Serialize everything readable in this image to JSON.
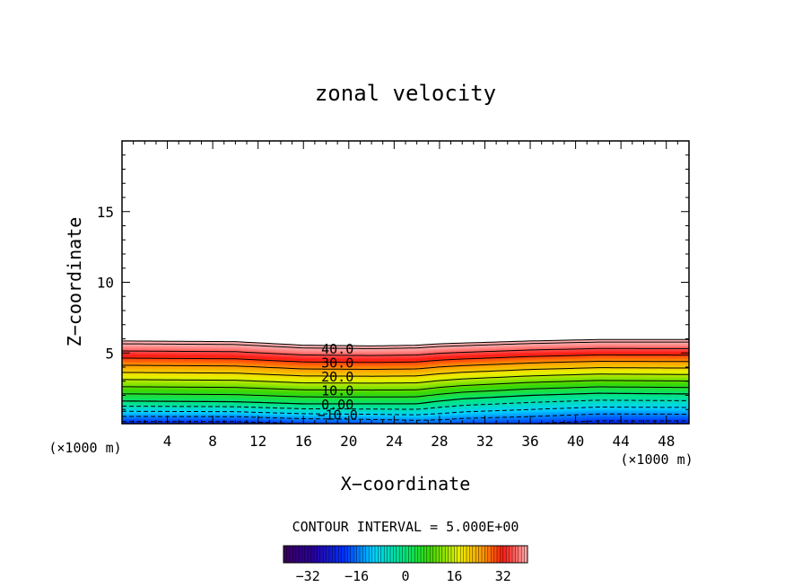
{
  "chart_data": {
    "type": "contour",
    "title": "zonal velocity",
    "xlabel": "X−coordinate",
    "ylabel": "Z−coordinate",
    "x_unit_left": "(×1000 m)",
    "x_unit_right": "(×1000 m)",
    "xlim": [
      0,
      50
    ],
    "ylim": [
      0,
      20
    ],
    "x_ticks": [
      4,
      8,
      12,
      16,
      20,
      24,
      28,
      32,
      36,
      40,
      44,
      48
    ],
    "y_ticks": [
      5,
      10,
      15
    ],
    "contour_labels": [
      {
        "value": 40,
        "text": "40.0"
      },
      {
        "value": 30,
        "text": "30.0"
      },
      {
        "value": 20,
        "text": "20.0"
      },
      {
        "value": 10,
        "text": "10.0"
      },
      {
        "value": 0,
        "text": "0.00"
      },
      {
        "value": -10,
        "text": "−10.0"
      }
    ],
    "field": {
      "x": [
        0,
        10,
        16,
        22,
        26,
        28,
        30,
        36,
        42,
        50
      ],
      "top_height": [
        5.85,
        5.8,
        5.55,
        5.5,
        5.55,
        5.65,
        5.7,
        5.85,
        5.95,
        5.95
      ],
      "zero_height": [
        1.6,
        1.55,
        1.4,
        1.4,
        1.4,
        1.6,
        1.75,
        2.0,
        2.15,
        2.1
      ],
      "surface_value": [
        -22,
        -22,
        -20,
        -19,
        -18,
        -18,
        -19,
        -20,
        -22,
        -22
      ],
      "top_value": 42
    },
    "contour_interval_text": "CONTOUR INTERVAL =  5.000E+00",
    "colorbar": {
      "min": -40,
      "max": 40,
      "ticks": [
        -32,
        -16,
        0,
        16,
        32
      ]
    }
  }
}
